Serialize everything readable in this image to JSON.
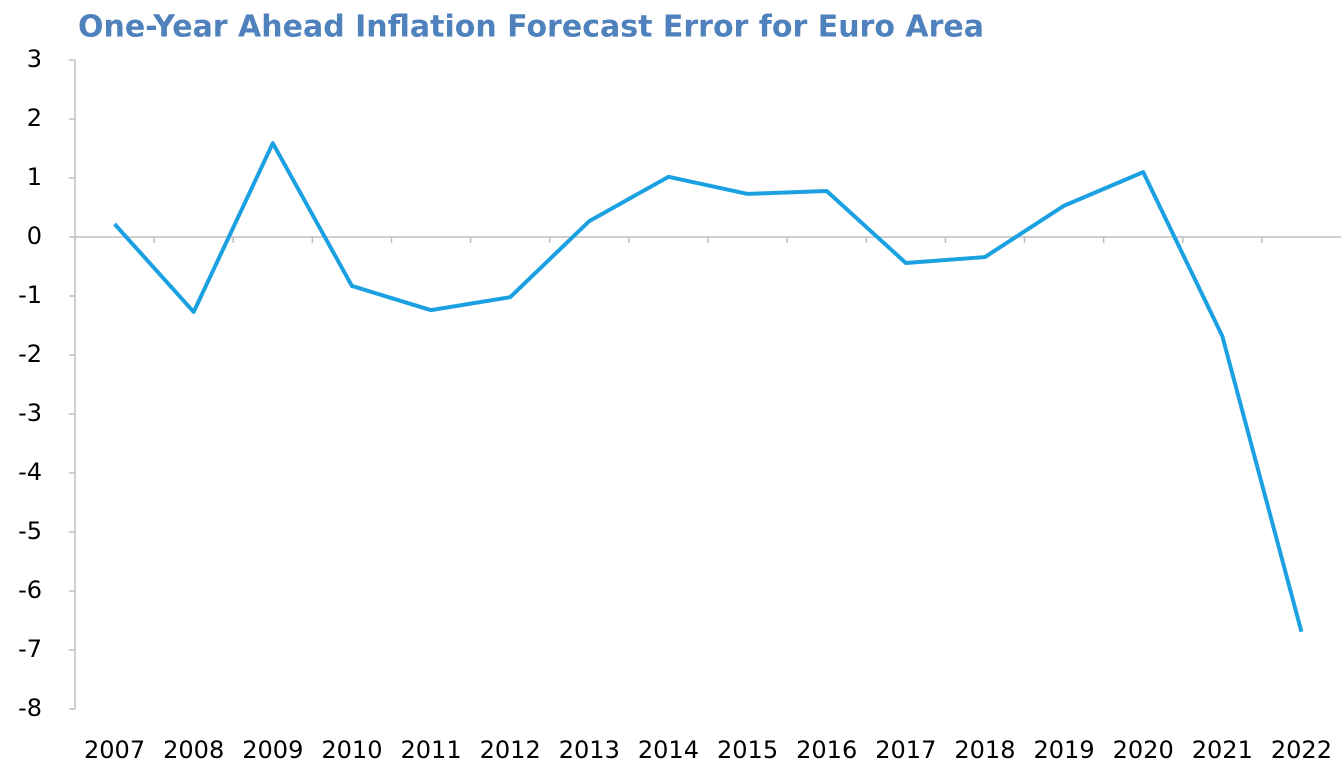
{
  "chart_data": {
    "type": "line",
    "title": "One-Year Ahead Inflation Forecast Error for Euro Area",
    "categories": [
      "2007",
      "2008",
      "2009",
      "2010",
      "2011",
      "2012",
      "2013",
      "2014",
      "2015",
      "2016",
      "2017",
      "2018",
      "2019",
      "2020",
      "2021",
      "2022"
    ],
    "series": [
      {
        "name": "Forecast error",
        "color": "#1ba1e2",
        "values": [
          0.22,
          -1.27,
          1.59,
          -0.83,
          -1.24,
          -1.02,
          0.27,
          1.02,
          0.73,
          0.78,
          -0.44,
          -0.34,
          0.53,
          1.1,
          -1.68,
          -6.69
        ]
      }
    ],
    "ylim": [
      -8,
      3
    ],
    "yticks": [
      -8,
      -7,
      -6,
      -5,
      -4,
      -3,
      -2,
      -1,
      0,
      1,
      2,
      3
    ],
    "grid": false
  }
}
